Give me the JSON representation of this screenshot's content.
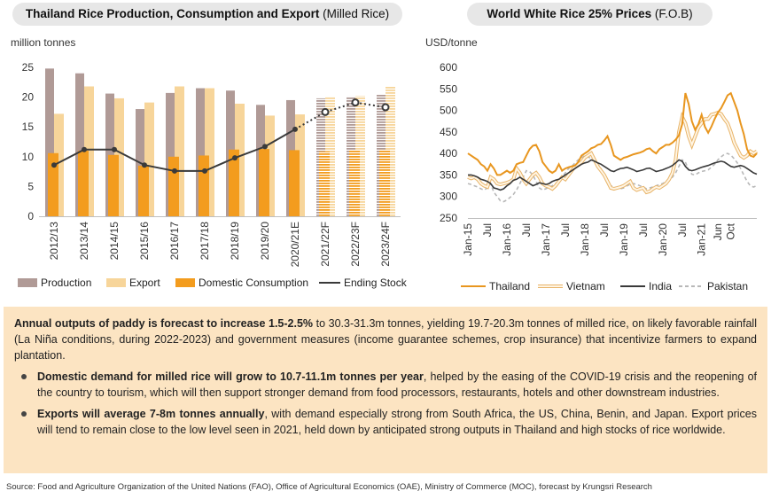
{
  "left_panel": {
    "title_bold": "Thailand Rice Production, Consumption and Export",
    "title_rest": "(Milled Rice)"
  },
  "right_panel": {
    "title_bold": "World White Rice 25% Prices",
    "title_rest": "(F.O.B)"
  },
  "colors": {
    "production": "#b09a96",
    "export": "#f7d59a",
    "domestic": "#f39c1e",
    "ending_stock": "#3a3a3a",
    "thailand": "#e8961f",
    "vietnam": "#f3cf92",
    "india": "#3a3a3a",
    "pakistan": "#b8b8b8",
    "panel_bg": "#fce4c2",
    "pill_bg": "#e7e7e7"
  },
  "chart_data": [
    {
      "type": "bar",
      "ylabel": "million tonnes",
      "ylim": [
        0,
        25
      ],
      "yticks": [
        0,
        5,
        10,
        15,
        20,
        25
      ],
      "categories": [
        "2012/13",
        "2013/14",
        "2014/15",
        "2015/16",
        "2016/17",
        "2017/18",
        "2018/19",
        "2019/20",
        "2020/21E",
        "2021/22F",
        "2022/23F",
        "2023/24F"
      ],
      "forecast_from_index": 9,
      "series": [
        {
          "name": "Production",
          "kind": "bar",
          "values": [
            24.8,
            24.0,
            20.6,
            18.0,
            20.7,
            21.5,
            21.1,
            18.7,
            19.5,
            19.8,
            20.1,
            20.5
          ]
        },
        {
          "name": "Export",
          "kind": "bar",
          "values": [
            17.2,
            21.8,
            19.8,
            19.1,
            21.8,
            21.5,
            18.9,
            16.9,
            17.1,
            20.1,
            20.2,
            21.8
          ]
        },
        {
          "name": "Domestic Consumption",
          "kind": "bar",
          "values": [
            10.6,
            11.0,
            10.3,
            8.5,
            10.0,
            10.2,
            11.2,
            11.3,
            11.1,
            10.9,
            11.1,
            11.2
          ]
        },
        {
          "name": "Ending Stock",
          "kind": "line",
          "values": [
            8.6,
            11.2,
            11.2,
            8.6,
            7.6,
            7.6,
            9.8,
            11.7,
            14.6,
            17.5,
            19.1,
            18.3
          ]
        }
      ],
      "legend_position": "bottom"
    },
    {
      "type": "line",
      "ylabel": "USD/tonne",
      "ylim": [
        250,
        600
      ],
      "yticks": [
        250,
        300,
        350,
        400,
        450,
        500,
        550,
        600
      ],
      "x_tick_labels": [
        "Jan-15",
        "Jul",
        "Jan-16",
        "Jul",
        "Jan-17",
        "Jul",
        "Jan-18",
        "Jul",
        "Jan-19",
        "Jul",
        "Jan-20",
        "Jul",
        "Jan-21",
        "Jun",
        "Oct"
      ],
      "x_period": "2015-01 to 2021-10, monthly",
      "series": [
        {
          "name": "Thailand",
          "values": [
            400,
            395,
            390,
            385,
            375,
            370,
            360,
            375,
            365,
            350,
            350,
            355,
            360,
            355,
            360,
            375,
            378,
            380,
            395,
            410,
            418,
            420,
            405,
            380,
            370,
            360,
            355,
            360,
            375,
            360,
            365,
            368,
            370,
            372,
            380,
            395,
            400,
            405,
            412,
            415,
            420,
            422,
            430,
            440,
            420,
            395,
            390,
            385,
            390,
            392,
            395,
            398,
            400,
            402,
            405,
            410,
            412,
            405,
            400,
            410,
            415,
            420,
            420,
            425,
            432,
            442,
            468,
            540,
            515,
            475,
            455,
            468,
            490,
            462,
            448,
            462,
            480,
            495,
            505,
            520,
            535,
            540,
            520,
            500,
            470,
            445,
            410,
            395,
            392,
            400
          ]
        },
        {
          "name": "Vietnam",
          "values": [
            345,
            342,
            345,
            340,
            330,
            325,
            322,
            345,
            340,
            330,
            328,
            330,
            332,
            335,
            340,
            365,
            355,
            340,
            330,
            340,
            350,
            355,
            345,
            330,
            325,
            322,
            318,
            325,
            335,
            345,
            340,
            350,
            360,
            370,
            375,
            380,
            390,
            395,
            400,
            385,
            370,
            360,
            350,
            335,
            320,
            318,
            320,
            322,
            325,
            330,
            335,
            320,
            315,
            318,
            320,
            310,
            312,
            318,
            322,
            320,
            325,
            330,
            340,
            355,
            385,
            450,
            485,
            470,
            440,
            420,
            440,
            460,
            470,
            480,
            480,
            490,
            492,
            495,
            492,
            480,
            470,
            450,
            425,
            410,
            395,
            390,
            395,
            405,
            400,
            405
          ]
        },
        {
          "name": "India",
          "values": [
            350,
            350,
            348,
            345,
            340,
            338,
            335,
            330,
            320,
            318,
            315,
            318,
            325,
            330,
            338,
            340,
            345,
            340,
            335,
            330,
            325,
            328,
            332,
            330,
            328,
            330,
            335,
            338,
            340,
            345,
            350,
            355,
            360,
            365,
            370,
            375,
            378,
            380,
            385,
            382,
            378,
            375,
            370,
            365,
            360,
            358,
            362,
            365,
            366,
            368,
            365,
            362,
            358,
            360,
            362,
            365,
            366,
            362,
            358,
            360,
            362,
            365,
            368,
            372,
            378,
            385,
            382,
            370,
            362,
            360,
            362,
            365,
            368,
            370,
            372,
            375,
            378,
            380,
            382,
            380,
            375,
            370,
            368,
            370,
            372,
            370,
            365,
            360,
            355,
            352
          ]
        },
        {
          "name": "Pakistan",
          "values": [
            330,
            328,
            325,
            322,
            318,
            315,
            320,
            330,
            310,
            300,
            290,
            288,
            292,
            298,
            305,
            315,
            330,
            345,
            360,
            358,
            350,
            335,
            320,
            315,
            318,
            322,
            325,
            330,
            335,
            345,
            355,
            365,
            370,
            378,
            385,
            390,
            395,
            392,
            388,
            382,
            375,
            365,
            345,
            330,
            325,
            322,
            320,
            318,
            320,
            325,
            328,
            330,
            328,
            325,
            322,
            318,
            320,
            322,
            325,
            328,
            330,
            335,
            338,
            345,
            355,
            370,
            385,
            380,
            362,
            352,
            350,
            355,
            358,
            360,
            362,
            368,
            375,
            385,
            392,
            398,
            400,
            396,
            388,
            378,
            365,
            350,
            335,
            325,
            322,
            325
          ]
        }
      ],
      "legend_position": "bottom"
    }
  ],
  "summary": {
    "intro_bold": "Annual outputs of paddy is forecast to increase 1.5-2.5%",
    "intro_rest": " to 30.3-31.3m tonnes, yielding 19.7-20.3m tonnes of milled rice, on likely favorable rainfall (La Niña conditions, during 2022-2023) and government measures (income guarantee schemes, crop insurance) that incentivize farmers to expand plantation.",
    "bullets": [
      {
        "bold": "Domestic demand for milled rice will grow to 10.7-11.1m tonnes per year",
        "rest": ", helped by the easing of the COVID-19 crisis and the reopening of the country to tourism, which will then support stronger demand from food processors, restaurants, hotels and other downstream industries."
      },
      {
        "bold": "Exports will average 7-8m tonnes annually",
        "rest": ", with demand especially strong from South Africa, the US, China, Benin, and Japan. Export prices will tend to remain close to the low level seen in 2021, held down by anticipated strong outputs in Thailand and high stocks of rice worldwide."
      }
    ]
  },
  "source": "Source: Food and Agriculture Organization of the United Nations (FAO), Office of Agricultural Economics (OAE), Ministry of Commerce (MOC), forecast by Krungsri Research"
}
